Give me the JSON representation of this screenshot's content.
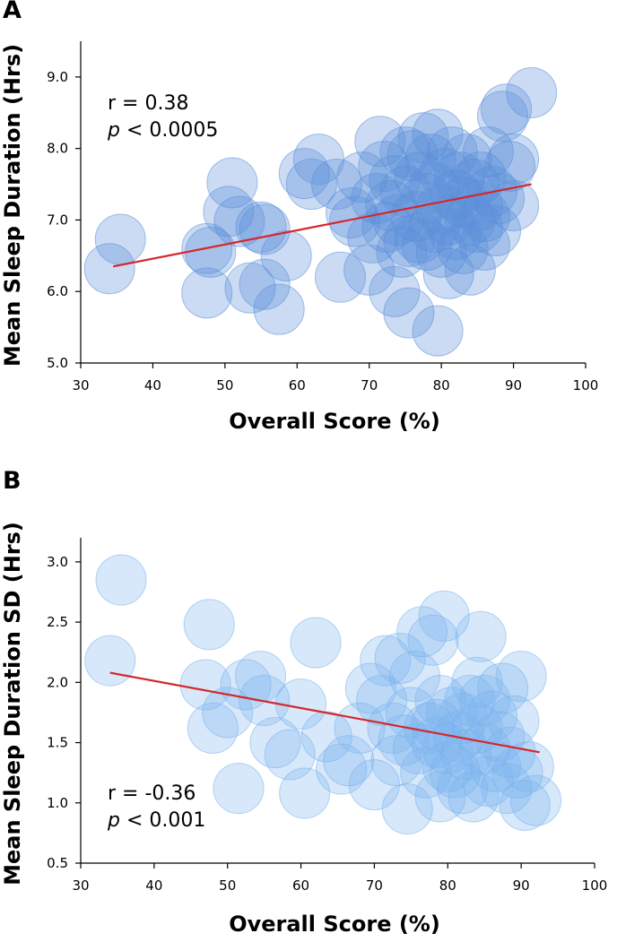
{
  "chart_data": [
    {
      "panel": "A",
      "type": "scatter",
      "xlabel": "Overall Score (%)",
      "ylabel": "Mean Sleep Duration (Hrs)",
      "xlim": [
        30,
        100
      ],
      "ylim": [
        5.0,
        9.5
      ],
      "xticks": [
        "30",
        "40",
        "50",
        "60",
        "70",
        "80",
        "90",
        "100"
      ],
      "yticks": [
        "5.0",
        "6.0",
        "7.0",
        "8.0",
        "9.0"
      ],
      "annotation_r": "r = 0.38",
      "annotation_p_symbol": "p",
      "annotation_p_rest": " < 0.0005",
      "marker_color": "#5b8fd9",
      "trend_color": "#d6262b",
      "trendline": [
        [
          34.5,
          6.35
        ],
        [
          92.5,
          7.5
        ]
      ],
      "points": [
        [
          34.0,
          6.32
        ],
        [
          35.5,
          6.73
        ],
        [
          47.5,
          6.6
        ],
        [
          48.0,
          6.55
        ],
        [
          47.5,
          5.98
        ],
        [
          50.5,
          7.12
        ],
        [
          51.0,
          7.52
        ],
        [
          52.0,
          6.98
        ],
        [
          53.5,
          6.05
        ],
        [
          55.0,
          6.9
        ],
        [
          55.5,
          6.87
        ],
        [
          55.5,
          6.1
        ],
        [
          57.5,
          5.75
        ],
        [
          58.5,
          6.5
        ],
        [
          61.0,
          7.65
        ],
        [
          62.0,
          7.5
        ],
        [
          63.0,
          7.85
        ],
        [
          65.5,
          7.5
        ],
        [
          66.0,
          6.2
        ],
        [
          67.5,
          7.1
        ],
        [
          68.0,
          6.98
        ],
        [
          69.0,
          7.6
        ],
        [
          70.0,
          6.3
        ],
        [
          70.5,
          6.75
        ],
        [
          71.0,
          7.3
        ],
        [
          71.5,
          8.1
        ],
        [
          72.0,
          7.75
        ],
        [
          72.5,
          6.9
        ],
        [
          73.0,
          7.2
        ],
        [
          73.5,
          7.55
        ],
        [
          73.5,
          6.0
        ],
        [
          74.0,
          7.0
        ],
        [
          74.5,
          6.55
        ],
        [
          75.0,
          7.95
        ],
        [
          75.0,
          7.4
        ],
        [
          75.5,
          5.7
        ],
        [
          75.5,
          6.7
        ],
        [
          76.0,
          7.9
        ],
        [
          76.5,
          7.05
        ],
        [
          77.0,
          6.75
        ],
        [
          77.0,
          7.6
        ],
        [
          77.5,
          8.15
        ],
        [
          78.0,
          6.65
        ],
        [
          78.0,
          7.3
        ],
        [
          78.5,
          7.85
        ],
        [
          79.0,
          6.9
        ],
        [
          79.0,
          7.45
        ],
        [
          79.5,
          8.2
        ],
        [
          79.5,
          5.45
        ],
        [
          80.0,
          7.15
        ],
        [
          80.0,
          6.55
        ],
        [
          80.5,
          7.65
        ],
        [
          81.0,
          6.25
        ],
        [
          81.0,
          7.0
        ],
        [
          81.5,
          7.95
        ],
        [
          82.0,
          7.35
        ],
        [
          82.0,
          6.8
        ],
        [
          82.5,
          7.6
        ],
        [
          83.0,
          7.25
        ],
        [
          83.0,
          6.6
        ],
        [
          83.5,
          7.85
        ],
        [
          84.0,
          7.0
        ],
        [
          84.0,
          6.3
        ],
        [
          84.5,
          7.5
        ],
        [
          85.0,
          6.9
        ],
        [
          85.0,
          7.2
        ],
        [
          85.5,
          7.6
        ],
        [
          86.0,
          7.05
        ],
        [
          86.0,
          6.65
        ],
        [
          86.5,
          7.95
        ],
        [
          87.0,
          7.4
        ],
        [
          87.5,
          6.85
        ],
        [
          88.0,
          7.3
        ],
        [
          88.5,
          8.45
        ],
        [
          89.0,
          8.55
        ],
        [
          89.5,
          7.75
        ],
        [
          90.0,
          7.85
        ],
        [
          90.0,
          7.2
        ],
        [
          92.5,
          8.78
        ]
      ]
    },
    {
      "panel": "B",
      "type": "scatter",
      "xlabel": "Overall Score (%)",
      "ylabel": "Mean Sleep Duration SD (Hrs)",
      "xlim": [
        30,
        100
      ],
      "ylim": [
        0.5,
        3.2
      ],
      "xticks": [
        "30",
        "40",
        "50",
        "60",
        "70",
        "80",
        "90",
        "100"
      ],
      "yticks": [
        "0.5",
        "1.0",
        "1.5",
        "2.0",
        "2.5",
        "3.0"
      ],
      "annotation_r": "r = -0.36",
      "annotation_p_symbol": "p",
      "annotation_p_rest": " < 0.001",
      "marker_color": "#7ab3ef",
      "trend_color": "#d6262b",
      "trendline": [
        [
          34.0,
          2.08
        ],
        [
          92.5,
          1.42
        ]
      ],
      "points": [
        [
          35.5,
          2.85
        ],
        [
          34.0,
          2.18
        ],
        [
          47.5,
          2.48
        ],
        [
          47.0,
          1.98
        ],
        [
          48.0,
          1.62
        ],
        [
          50.0,
          1.75
        ],
        [
          51.5,
          1.12
        ],
        [
          52.5,
          1.98
        ],
        [
          54.5,
          2.05
        ],
        [
          55.0,
          1.85
        ],
        [
          56.5,
          1.5
        ],
        [
          58.5,
          1.4
        ],
        [
          60.0,
          1.82
        ],
        [
          60.5,
          1.08
        ],
        [
          62.0,
          2.33
        ],
        [
          63.5,
          1.55
        ],
        [
          65.5,
          1.28
        ],
        [
          66.5,
          1.35
        ],
        [
          68.0,
          1.62
        ],
        [
          69.5,
          1.95
        ],
        [
          70.0,
          1.15
        ],
        [
          71.0,
          1.85
        ],
        [
          71.5,
          2.18
        ],
        [
          72.5,
          1.62
        ],
        [
          73.0,
          1.35
        ],
        [
          73.5,
          2.2
        ],
        [
          74.0,
          1.52
        ],
        [
          74.5,
          0.95
        ],
        [
          75.0,
          1.75
        ],
        [
          75.5,
          2.05
        ],
        [
          76.0,
          1.45
        ],
        [
          76.5,
          2.42
        ],
        [
          77.0,
          1.25
        ],
        [
          77.5,
          1.62
        ],
        [
          78.0,
          2.35
        ],
        [
          78.5,
          1.5
        ],
        [
          79.0,
          1.05
        ],
        [
          79.0,
          1.85
        ],
        [
          79.5,
          2.55
        ],
        [
          80.0,
          1.45
        ],
        [
          80.5,
          1.75
        ],
        [
          81.0,
          1.25
        ],
        [
          81.5,
          1.55
        ],
        [
          82.0,
          1.12
        ],
        [
          82.5,
          1.4
        ],
        [
          83.0,
          1.85
        ],
        [
          83.5,
          1.05
        ],
        [
          84.0,
          1.62
        ],
        [
          84.0,
          2.0
        ],
        [
          84.5,
          2.38
        ],
        [
          85.0,
          1.45
        ],
        [
          85.5,
          1.18
        ],
        [
          86.0,
          1.72
        ],
        [
          86.5,
          1.3
        ],
        [
          87.0,
          1.55
        ],
        [
          87.5,
          1.95
        ],
        [
          88.0,
          1.12
        ],
        [
          88.5,
          1.42
        ],
        [
          89.0,
          1.68
        ],
        [
          89.5,
          1.25
        ],
        [
          90.0,
          2.05
        ],
        [
          90.5,
          0.98
        ],
        [
          91.0,
          1.3
        ],
        [
          92.0,
          1.02
        ],
        [
          78.5,
          1.65
        ],
        [
          80.0,
          1.3
        ],
        [
          82.0,
          1.7
        ],
        [
          85.0,
          1.85
        ]
      ]
    }
  ]
}
